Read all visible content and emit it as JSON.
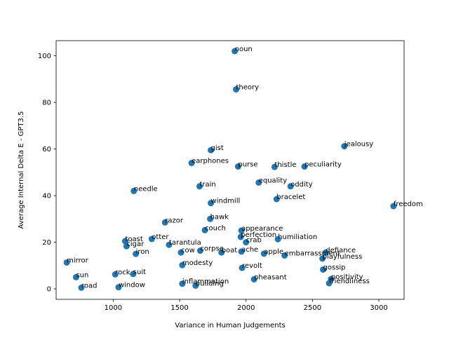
{
  "chart_data": {
    "type": "scatter",
    "xlabel": "Variance in Human Judgements",
    "ylabel": "Average Internal Delta E - GPT3.5",
    "xlim": [
      570,
      3190
    ],
    "ylim": [
      -4.5,
      106.5
    ],
    "xticks": [
      1000,
      1500,
      2000,
      2500,
      3000
    ],
    "yticks": [
      0,
      20,
      40,
      60,
      80,
      100
    ],
    "marker_color": "#1f77b4",
    "points": [
      {
        "label": "noun",
        "x": 1915,
        "y": 102.0
      },
      {
        "label": "theory",
        "x": 1925,
        "y": 85.6
      },
      {
        "label": "jealousy",
        "x": 2740,
        "y": 61.2
      },
      {
        "label": "gist",
        "x": 1735,
        "y": 59.5
      },
      {
        "label": "earphones",
        "x": 1590,
        "y": 54.0
      },
      {
        "label": "purse",
        "x": 1940,
        "y": 52.5
      },
      {
        "label": "thistle",
        "x": 2215,
        "y": 52.3
      },
      {
        "label": "peculiarity",
        "x": 2440,
        "y": 52.5
      },
      {
        "label": "equality",
        "x": 2095,
        "y": 45.6
      },
      {
        "label": "oddity",
        "x": 2335,
        "y": 44.0
      },
      {
        "label": "train",
        "x": 1650,
        "y": 44.0
      },
      {
        "label": "needle",
        "x": 1155,
        "y": 42.0
      },
      {
        "label": "bracelet",
        "x": 2230,
        "y": 38.5
      },
      {
        "label": "windmill",
        "x": 1735,
        "y": 36.8
      },
      {
        "label": "freedom",
        "x": 3110,
        "y": 35.5
      },
      {
        "label": "hawk",
        "x": 1730,
        "y": 30.0
      },
      {
        "label": "razor",
        "x": 1390,
        "y": 28.5
      },
      {
        "label": "couch",
        "x": 1690,
        "y": 25.2
      },
      {
        "label": "appearance",
        "x": 1965,
        "y": 25.0
      },
      {
        "label": "perfection",
        "x": 1960,
        "y": 22.3
      },
      {
        "label": "crab",
        "x": 2000,
        "y": 20.0
      },
      {
        "label": "humiliation",
        "x": 2240,
        "y": 21.3
      },
      {
        "label": "toast",
        "x": 1090,
        "y": 20.5
      },
      {
        "label": "otter",
        "x": 1290,
        "y": 21.4
      },
      {
        "label": "cigar",
        "x": 1100,
        "y": 18.3
      },
      {
        "label": "tarantula",
        "x": 1420,
        "y": 18.9
      },
      {
        "label": "iron",
        "x": 1170,
        "y": 15.0
      },
      {
        "label": "cow",
        "x": 1510,
        "y": 15.6
      },
      {
        "label": "corpse",
        "x": 1655,
        "y": 16.4
      },
      {
        "label": "boat",
        "x": 1815,
        "y": 15.6
      },
      {
        "label": "ache",
        "x": 1965,
        "y": 16.0
      },
      {
        "label": "apple",
        "x": 2135,
        "y": 15.1
      },
      {
        "label": "embarrassment",
        "x": 2290,
        "y": 14.3
      },
      {
        "label": "defiance",
        "x": 2600,
        "y": 15.6
      },
      {
        "label": "playfulness",
        "x": 2575,
        "y": 13.0
      },
      {
        "label": "mirror",
        "x": 650,
        "y": 11.3
      },
      {
        "label": "modesty",
        "x": 1520,
        "y": 10.2
      },
      {
        "label": "revolt",
        "x": 1970,
        "y": 9.0
      },
      {
        "label": "gossip",
        "x": 2580,
        "y": 8.3
      },
      {
        "label": "rock",
        "x": 1015,
        "y": 6.2
      },
      {
        "label": "suit",
        "x": 1150,
        "y": 6.4
      },
      {
        "label": "sun",
        "x": 720,
        "y": 5.0
      },
      {
        "label": "pheasant",
        "x": 2060,
        "y": 4.1
      },
      {
        "label": "positivity",
        "x": 2640,
        "y": 4.2
      },
      {
        "label": "friendliness",
        "x": 2625,
        "y": 2.4
      },
      {
        "label": "inflammation",
        "x": 1520,
        "y": 2.2
      },
      {
        "label": "building",
        "x": 1620,
        "y": 1.4
      },
      {
        "label": "road",
        "x": 760,
        "y": 0.5
      },
      {
        "label": "window",
        "x": 1040,
        "y": 0.7
      }
    ]
  }
}
